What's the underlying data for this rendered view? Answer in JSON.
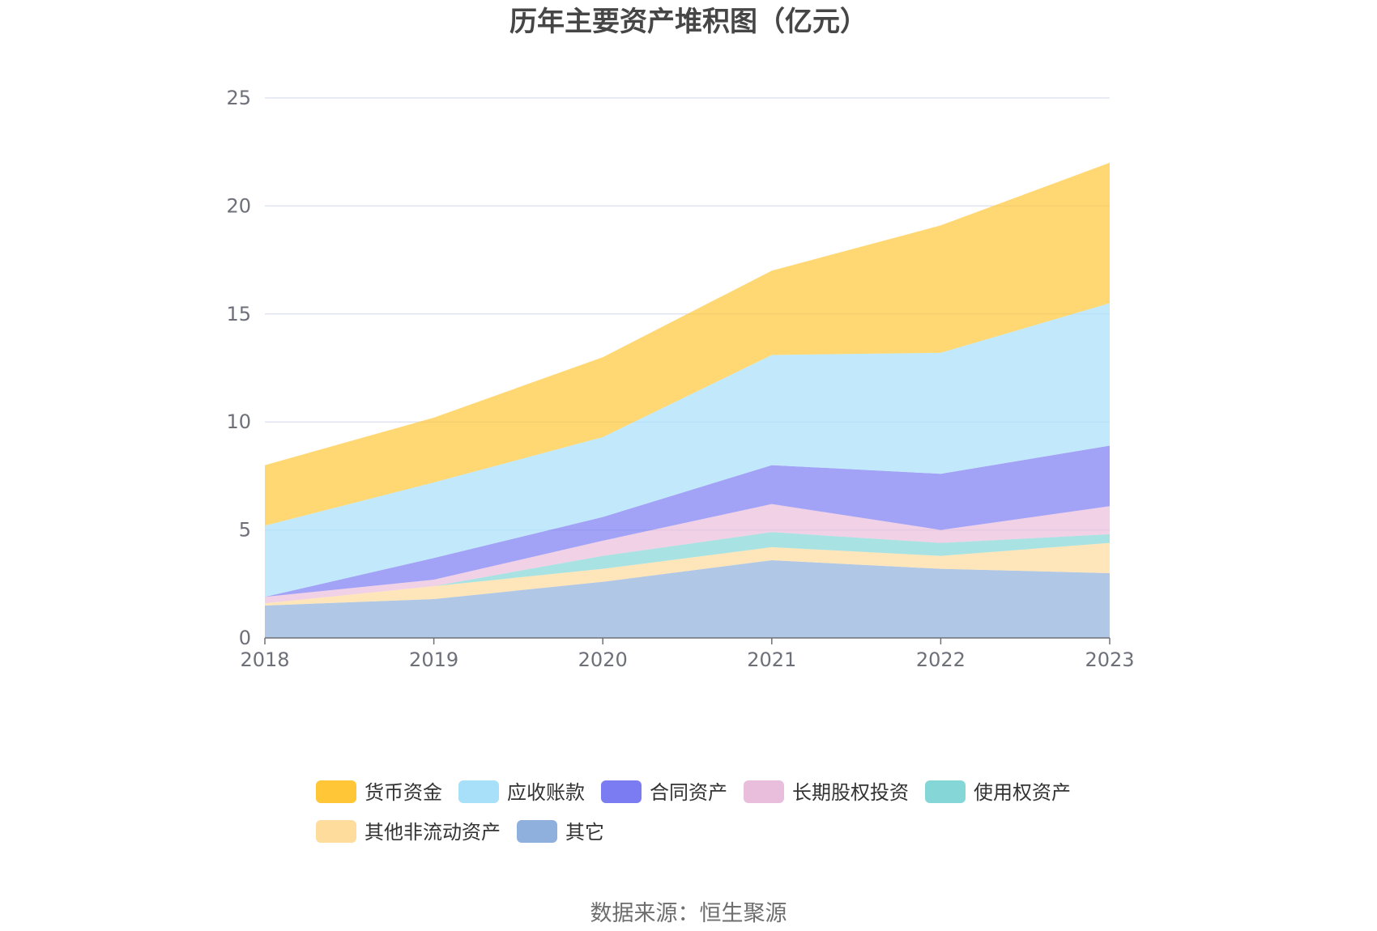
{
  "chart_data": {
    "type": "area",
    "stacked": true,
    "title": "历年主要资产堆积图（亿元）",
    "categories": [
      "2018",
      "2019",
      "2020",
      "2021",
      "2022",
      "2023"
    ],
    "ylim": [
      0,
      25
    ],
    "yticks": [
      0,
      5,
      10,
      15,
      20,
      25
    ],
    "grid": true,
    "series": [
      {
        "name": "其它",
        "color": "#8fb0dc",
        "values": [
          1.5,
          1.8,
          2.6,
          3.6,
          3.2,
          3.0
        ]
      },
      {
        "name": "其他非流动资产",
        "color": "#fedc9c",
        "values": [
          0.1,
          0.6,
          0.6,
          0.6,
          0.6,
          1.4
        ]
      },
      {
        "name": "使用权资产",
        "color": "#85d6d6",
        "values": [
          0.0,
          0.0,
          0.6,
          0.7,
          0.6,
          0.4
        ]
      },
      {
        "name": "长期股权投资",
        "color": "#e9bedc",
        "values": [
          0.3,
          0.3,
          0.7,
          1.3,
          0.6,
          1.3
        ]
      },
      {
        "name": "合同资产",
        "color": "#7b7cf2",
        "values": [
          0.0,
          1.0,
          1.1,
          1.8,
          2.6,
          2.8
        ]
      },
      {
        "name": "应收账款",
        "color": "#a8e0fa",
        "values": [
          3.3,
          3.5,
          3.7,
          5.1,
          5.6,
          6.6
        ]
      },
      {
        "name": "货币资金",
        "color": "#ffc738",
        "values": [
          2.8,
          3.0,
          3.7,
          3.9,
          5.9,
          6.5
        ]
      }
    ],
    "legend": [
      {
        "name": "货币资金",
        "color": "#ffc738"
      },
      {
        "name": "应收账款",
        "color": "#a8e0fa"
      },
      {
        "name": "合同资产",
        "color": "#7b7cf2"
      },
      {
        "name": "长期股权投资",
        "color": "#e9bedc"
      },
      {
        "name": "使用权资产",
        "color": "#85d6d6"
      },
      {
        "name": "其他非流动资产",
        "color": "#fedc9c"
      },
      {
        "name": "其它",
        "color": "#8fb0dc"
      }
    ],
    "legend_position": "bottom-center"
  },
  "source_text": "数据来源：恒生聚源"
}
